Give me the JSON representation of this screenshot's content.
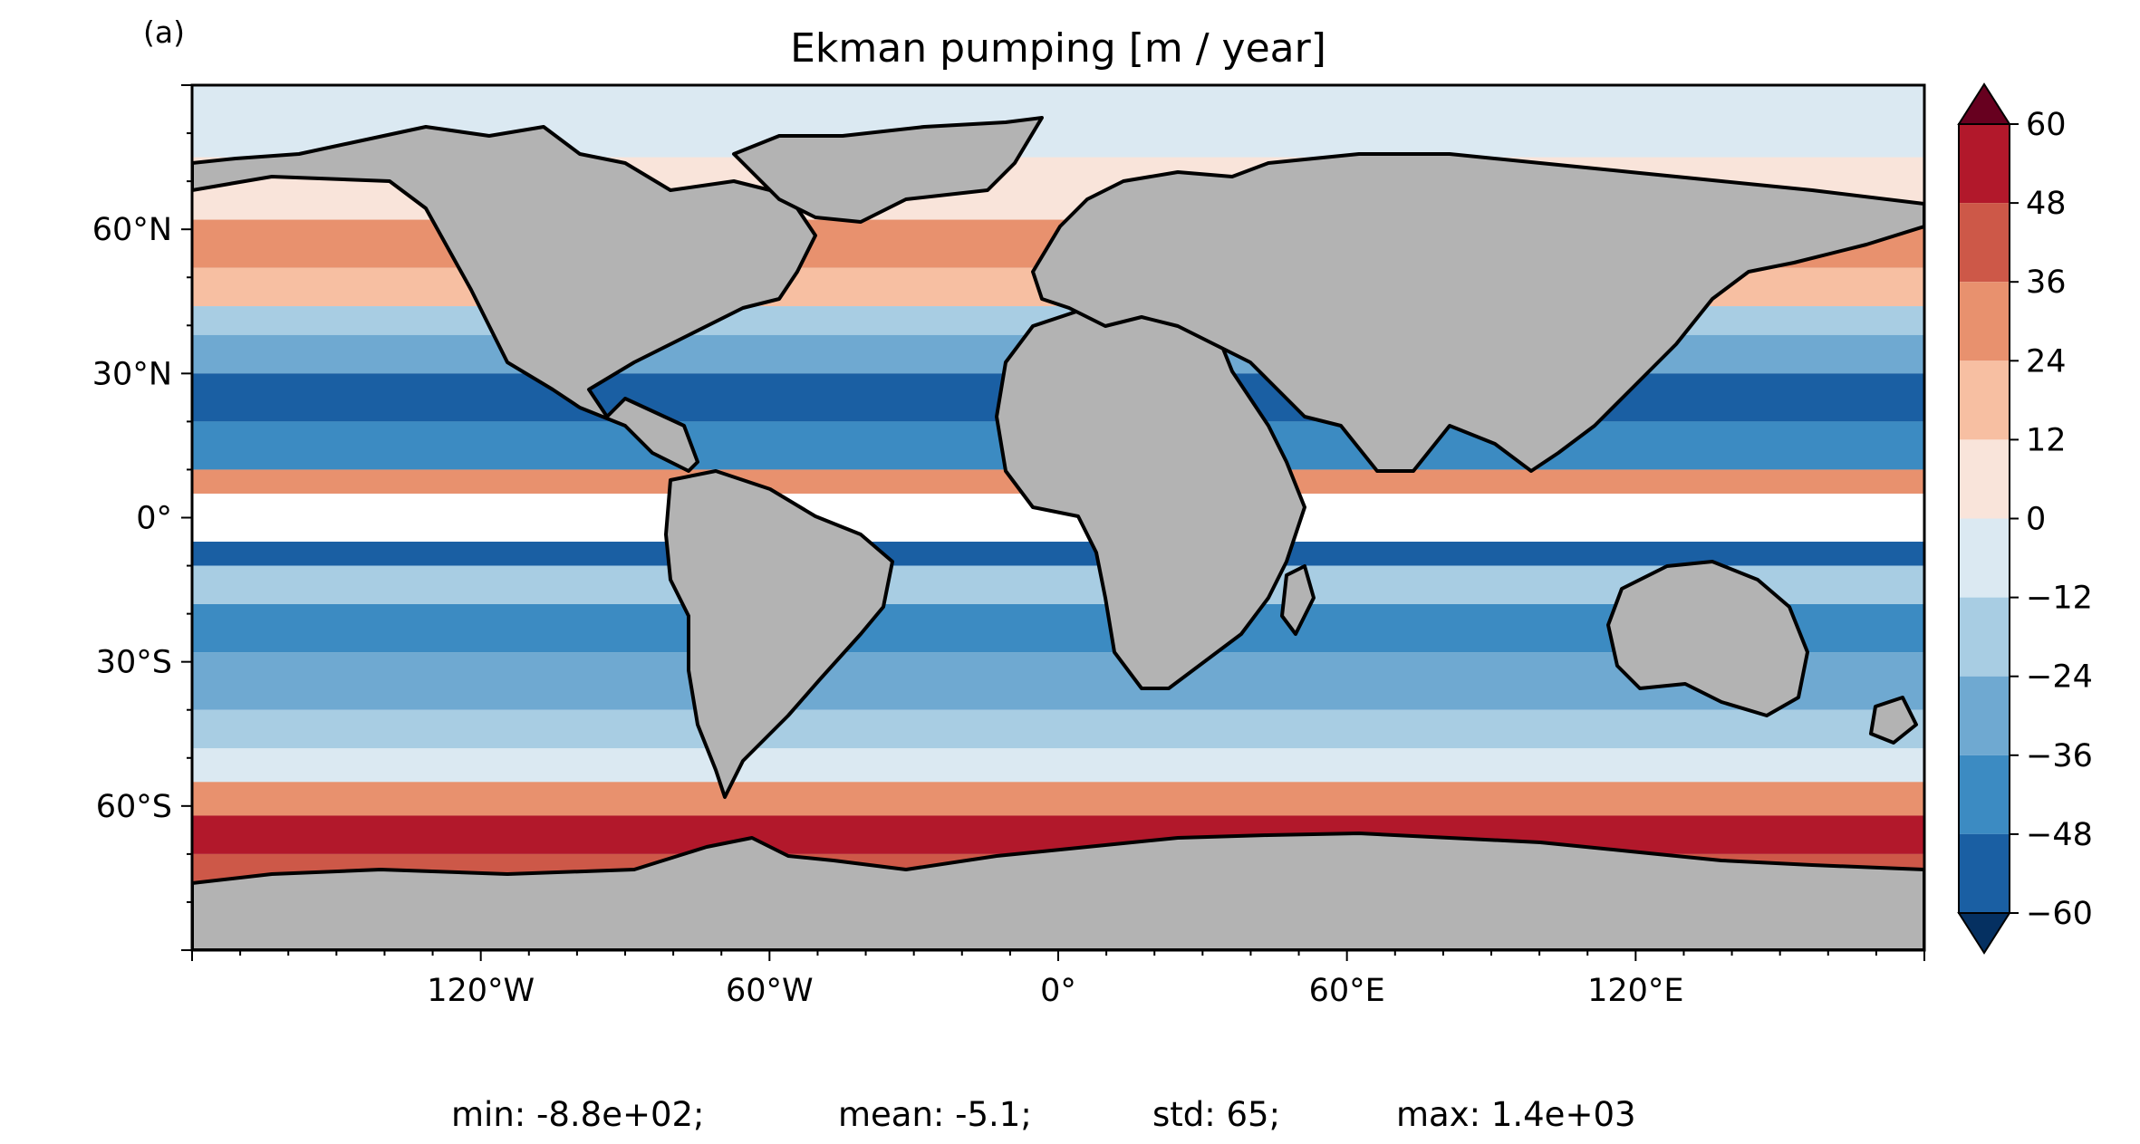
{
  "figure": {
    "panel_label": "(a)",
    "title": "Ekman pumping [m / year]",
    "stats": {
      "min": "min: -8.8e+02;",
      "mean": "mean: -5.1;",
      "std": "std: 65;",
      "max": "max: 1.4e+03"
    }
  },
  "map": {
    "projection": "PlateCarree",
    "lon_range": [
      -180,
      180
    ],
    "lat_range": [
      -90,
      90
    ],
    "lon_ticks": [
      {
        "value": -120,
        "label": "120°W"
      },
      {
        "value": -60,
        "label": "60°W"
      },
      {
        "value": 0,
        "label": "0°"
      },
      {
        "value": 60,
        "label": "60°E"
      },
      {
        "value": 120,
        "label": "120°E"
      }
    ],
    "lat_ticks": [
      {
        "value": 60,
        "label": "60°N"
      },
      {
        "value": 30,
        "label": "30°N"
      },
      {
        "value": 0,
        "label": "0°"
      },
      {
        "value": -30,
        "label": "30°S"
      },
      {
        "value": -60,
        "label": "60°S"
      }
    ],
    "land_color": "#b3b3b3",
    "coast_color": "#000000",
    "masked_equator_band": [
      -5,
      5
    ]
  },
  "colorbar": {
    "levels": [
      -60,
      -48,
      -36,
      -24,
      -12,
      0,
      12,
      24,
      36,
      48,
      60
    ],
    "labels": [
      "60",
      "48",
      "36",
      "24",
      "12",
      "0",
      "−12",
      "−24",
      "−36",
      "−48",
      "−60"
    ],
    "colors": [
      "#053061",
      "#1a5fa3",
      "#3c8bc2",
      "#6fa9d1",
      "#a8cde3",
      "#dbe9f2",
      "#f9e4da",
      "#f7bfa2",
      "#e8916e",
      "#cd5848",
      "#b2182b",
      "#67001f"
    ],
    "extend": "both"
  }
}
